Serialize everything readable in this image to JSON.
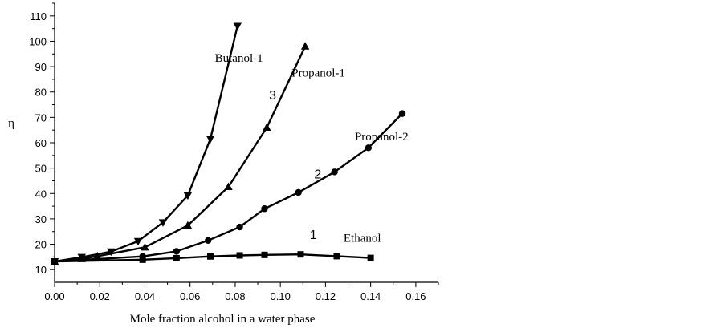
{
  "chart_data": {
    "type": "line",
    "title": "",
    "xlabel": "Mole fraction alcohol in a water phase",
    "ylabel": "η",
    "xlim": [
      0,
      0.17
    ],
    "ylim": [
      5,
      115
    ],
    "x_ticks": [
      0.0,
      0.02,
      0.04,
      0.06,
      0.08,
      0.1,
      0.12,
      0.14,
      0.16
    ],
    "x_tick_labels": [
      "0.00",
      "0.02",
      "0.04",
      "0.06",
      "0.08",
      "0.10",
      "0.12",
      "0.14",
      "0.16"
    ],
    "y_ticks": [
      10,
      20,
      30,
      40,
      50,
      60,
      70,
      80,
      90,
      100,
      110
    ],
    "y_tick_labels": [
      "10",
      "20",
      "30",
      "40",
      "50",
      "60",
      "70",
      "80",
      "90",
      "100",
      "110"
    ],
    "grid": false,
    "series": [
      {
        "name": "Ethanol",
        "marker": "square",
        "x": [
          0.0,
          0.039,
          0.054,
          0.069,
          0.082,
          0.093,
          0.109,
          0.125,
          0.14
        ],
        "y": [
          13.2,
          13.9,
          14.5,
          15.2,
          15.6,
          15.8,
          16.0,
          15.3,
          14.6
        ]
      },
      {
        "name": "Propanol-2",
        "marker": "circle",
        "x": [
          0.0,
          0.039,
          0.054,
          0.068,
          0.082,
          0.093,
          0.108,
          0.124,
          0.139,
          0.154
        ],
        "y": [
          13.2,
          15.2,
          17.2,
          21.5,
          26.8,
          34.0,
          40.4,
          48.5,
          58.0,
          71.5
        ]
      },
      {
        "name": "Propanol-1",
        "marker": "triangle-up",
        "x": [
          0.0,
          0.012,
          0.019,
          0.04,
          0.059,
          0.077,
          0.094,
          0.111
        ],
        "y": [
          13.2,
          14.2,
          15.3,
          18.8,
          27.4,
          42.6,
          66.0,
          98.0
        ]
      },
      {
        "name": "Butanol-1",
        "marker": "triangle-down",
        "x": [
          0.0,
          0.012,
          0.025,
          0.037,
          0.048,
          0.059,
          0.069,
          0.081
        ],
        "y": [
          13.2,
          14.9,
          17.1,
          21.2,
          28.6,
          39.2,
          61.5,
          106.0
        ]
      }
    ],
    "annotations": [
      {
        "text": "1",
        "x": 0.113,
        "y": 22
      },
      {
        "text": "2",
        "x": 0.115,
        "y": 46
      },
      {
        "text": "3",
        "x": 0.095,
        "y": 77
      },
      {
        "text": "Ethanol",
        "x": 0.128,
        "y": 21
      },
      {
        "text": "Propanol-2",
        "x": 0.133,
        "y": 61
      },
      {
        "text": "Propanol-1",
        "x": 0.105,
        "y": 86
      },
      {
        "text": "Butanol-1",
        "x": 0.071,
        "y": 92
      }
    ]
  }
}
